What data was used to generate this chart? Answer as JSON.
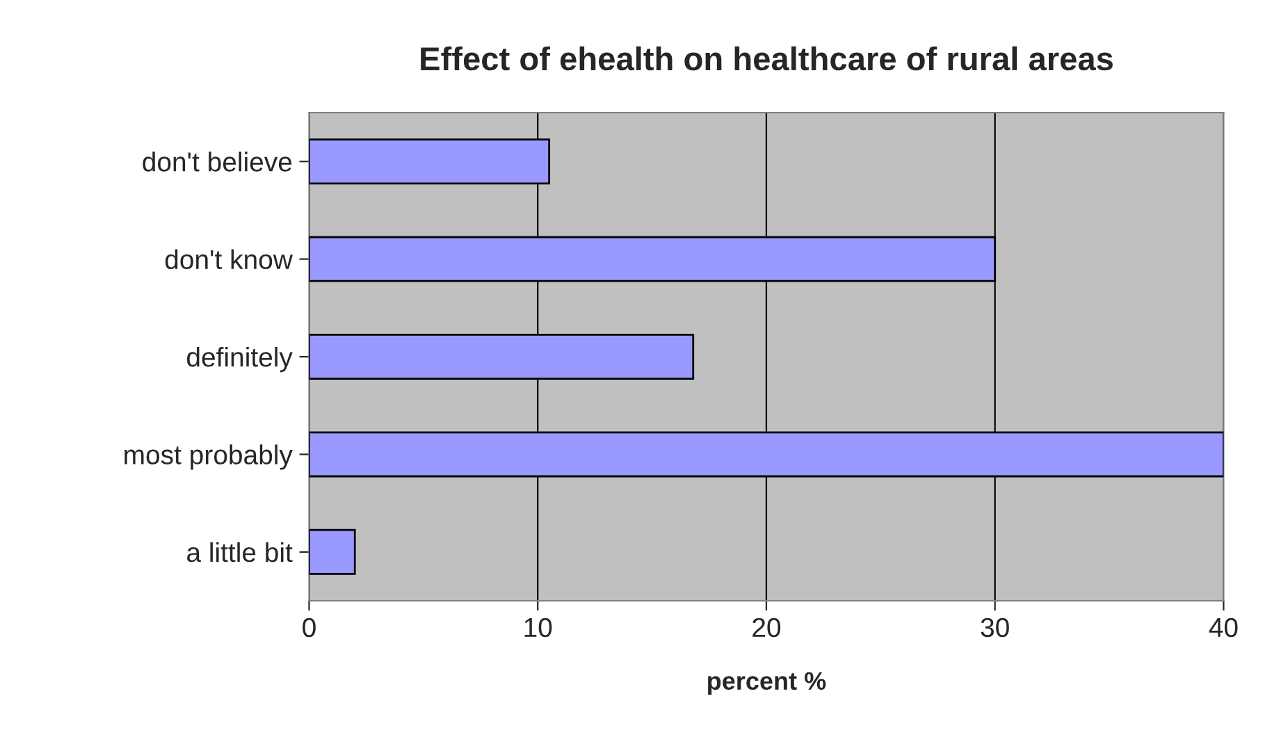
{
  "chart_data": {
    "type": "bar",
    "orientation": "horizontal",
    "title": "Effect of ehealth on healthcare of rural areas",
    "xlabel": "percent %",
    "categories": [
      "don't believe",
      "don't know",
      "definitely",
      "most probably",
      "a little bit"
    ],
    "values": [
      10.5,
      30,
      16.8,
      40,
      2
    ],
    "color": "#9999ff",
    "xlim": [
      0,
      40
    ],
    "xticks": [
      0,
      10,
      20,
      30,
      40
    ],
    "grid": "x",
    "legend": false
  }
}
